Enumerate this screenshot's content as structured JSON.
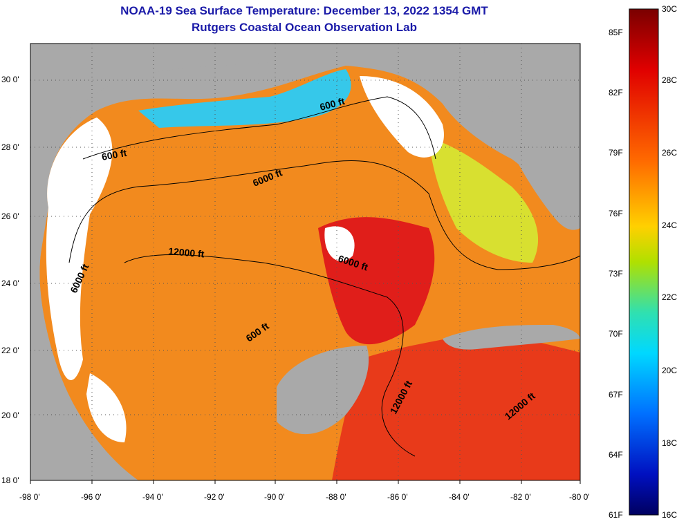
{
  "title_line1": "NOAA-19 Sea Surface Temperature:  December 13, 2022 1354 GMT",
  "title_line2": "Rutgers Coastal Ocean Observation Lab",
  "map": {
    "x_ticks": [
      "-98 0'",
      "-96 0'",
      "-94 0'",
      "-92 0'",
      "-90 0'",
      "-88 0'",
      "-86 0'",
      "-84 0'",
      "-82 0'",
      "-80 0'"
    ],
    "y_ticks": [
      "30 0'",
      "28 0'",
      "26 0'",
      "24 0'",
      "22 0'",
      "20 0'",
      "18 0'"
    ],
    "contour_labels": [
      "600 ft",
      "600 ft",
      "6000 ft",
      "12000 ft",
      "6000 ft",
      "6000 ft",
      "600 ft",
      "12000 ft",
      "12000 ft"
    ],
    "colors": {
      "land": "#a9a9a9",
      "cloud": "#ffffff",
      "warm_water": "#f0781e",
      "hot_water": "#e8201e",
      "cool_water": "#36c8ea"
    }
  },
  "colorbar": {
    "fahrenheit": [
      "85F",
      "82F",
      "79F",
      "76F",
      "73F",
      "70F",
      "67F",
      "64F",
      "61F"
    ],
    "celsius": [
      "30C",
      "28C",
      "26C",
      "24C",
      "22C",
      "20C",
      "18C",
      "16C"
    ],
    "colors": [
      "#7a0000",
      "#e00000",
      "#ff6a00",
      "#ffd000",
      "#b0e000",
      "#30e0b0",
      "#00d8ff",
      "#0070ff",
      "#0010c0",
      "#000060"
    ]
  }
}
